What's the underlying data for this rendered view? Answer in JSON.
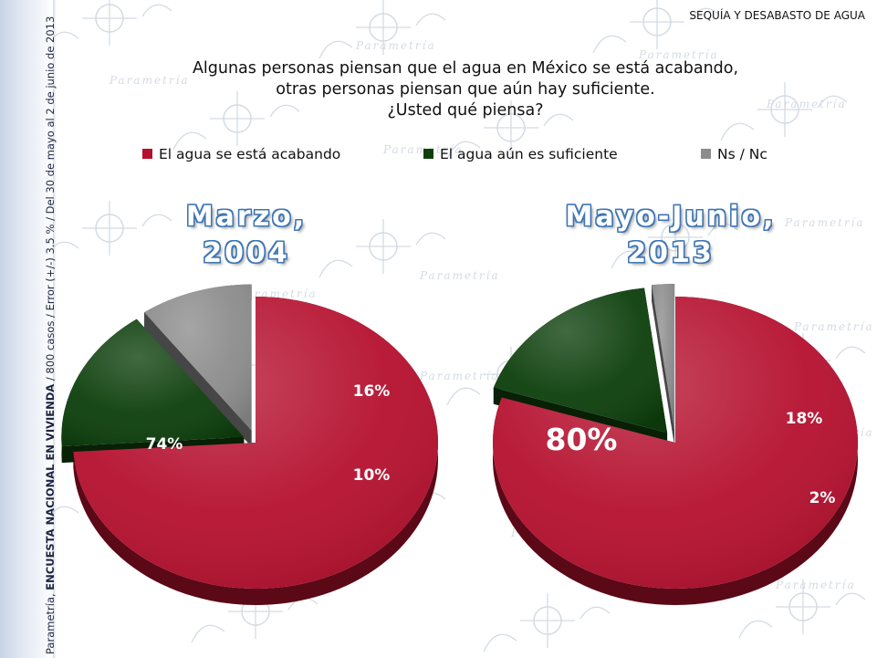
{
  "header": {
    "topic": "SEQUÍA Y DESABASTO DE AGUA"
  },
  "question": {
    "lines": [
      "Algunas personas piensan que el agua en México se está acabando,",
      "otras personas piensan que aún hay suficiente.",
      "¿Usted qué piensa?"
    ]
  },
  "watermark": {
    "text": "Parametría"
  },
  "side_note": {
    "prefix": "Parametría, ",
    "survey": "ENCUESTA NACIONAL EN VIVIENDA",
    "details": " / 800 casos / Error (+/-) 3.5 % / Del 30 de mayo al 2  de junio de 2013"
  },
  "legend": [
    {
      "label": "El agua se está acabando",
      "color": "#b5102e"
    },
    {
      "label": "El agua aún es suficiente",
      "color": "#0d3f0c"
    },
    {
      "label": "Ns / Nc",
      "color": "#8c8c8c"
    }
  ],
  "chart_data": [
    {
      "type": "pie",
      "title_lines": [
        "Marzo,",
        "2004"
      ],
      "categories": [
        "El agua se está acabando",
        "El agua aún es suficiente",
        "Ns / Nc"
      ],
      "values": [
        74,
        16,
        10
      ],
      "labels": [
        "74%",
        "16%",
        "10%"
      ],
      "colors": [
        "#b5102e",
        "#0d3f0c",
        "#8c8c8c"
      ],
      "exploded": [
        "El agua aún es suficiente",
        "Ns / Nc"
      ],
      "style": "3d-tilted"
    },
    {
      "type": "pie",
      "title_lines": [
        "Mayo-Junio,",
        "2013"
      ],
      "categories": [
        "El agua se está acabando",
        "El agua aún es suficiente",
        "Ns / Nc"
      ],
      "values": [
        80,
        18,
        2
      ],
      "labels": [
        "80%",
        "18%",
        "2%"
      ],
      "colors": [
        "#b5102e",
        "#0d3f0c",
        "#8c8c8c"
      ],
      "exploded": [
        "El agua aún es suficiente",
        "Ns / Nc"
      ],
      "style": "3d-tilted"
    }
  ]
}
